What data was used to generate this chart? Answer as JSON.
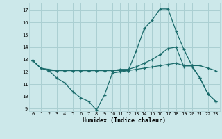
{
  "xlabel": "Humidex (Indice chaleur)",
  "bg_color": "#cce8ea",
  "grid_color": "#aacfd2",
  "line_color": "#1a6b6b",
  "xlim": [
    -0.5,
    23.5
  ],
  "ylim": [
    8.8,
    17.6
  ],
  "xticks": [
    0,
    1,
    2,
    3,
    4,
    5,
    6,
    7,
    8,
    9,
    10,
    11,
    12,
    13,
    14,
    15,
    16,
    17,
    18,
    19,
    20,
    21,
    22,
    23
  ],
  "yticks": [
    9,
    10,
    11,
    12,
    13,
    14,
    15,
    16,
    17
  ],
  "line1_x": [
    0,
    1,
    2,
    3,
    4,
    5,
    6,
    7,
    8,
    9,
    10,
    11,
    12,
    13,
    14,
    15,
    16,
    17,
    18,
    19,
    20,
    21,
    22,
    23
  ],
  "line1_y": [
    12.9,
    12.3,
    12.1,
    12.1,
    12.1,
    12.1,
    12.1,
    12.1,
    12.1,
    12.1,
    12.1,
    12.1,
    12.1,
    12.2,
    12.3,
    12.4,
    12.5,
    12.6,
    12.7,
    12.5,
    12.5,
    12.5,
    12.3,
    12.1
  ],
  "line2_x": [
    0,
    1,
    2,
    3,
    4,
    5,
    6,
    7,
    8,
    9,
    10,
    11,
    12,
    13,
    14,
    15,
    16,
    17,
    18,
    19,
    20,
    21,
    22,
    23
  ],
  "line2_y": [
    12.9,
    12.3,
    12.1,
    11.5,
    11.1,
    10.4,
    9.9,
    9.6,
    8.9,
    10.1,
    11.9,
    12.0,
    12.1,
    13.7,
    15.5,
    16.2,
    17.1,
    17.1,
    15.3,
    13.8,
    12.5,
    11.5,
    10.2,
    9.6
  ],
  "line3_x": [
    0,
    1,
    2,
    3,
    4,
    5,
    6,
    7,
    8,
    9,
    10,
    11,
    12,
    13,
    14,
    15,
    16,
    17,
    18,
    19,
    20,
    21,
    22,
    23
  ],
  "line3_y": [
    12.9,
    12.3,
    12.2,
    12.1,
    12.1,
    12.1,
    12.1,
    12.1,
    12.1,
    12.1,
    12.1,
    12.2,
    12.2,
    12.4,
    12.7,
    13.0,
    13.4,
    13.9,
    14.0,
    12.4,
    12.4,
    11.5,
    10.2,
    9.6
  ]
}
